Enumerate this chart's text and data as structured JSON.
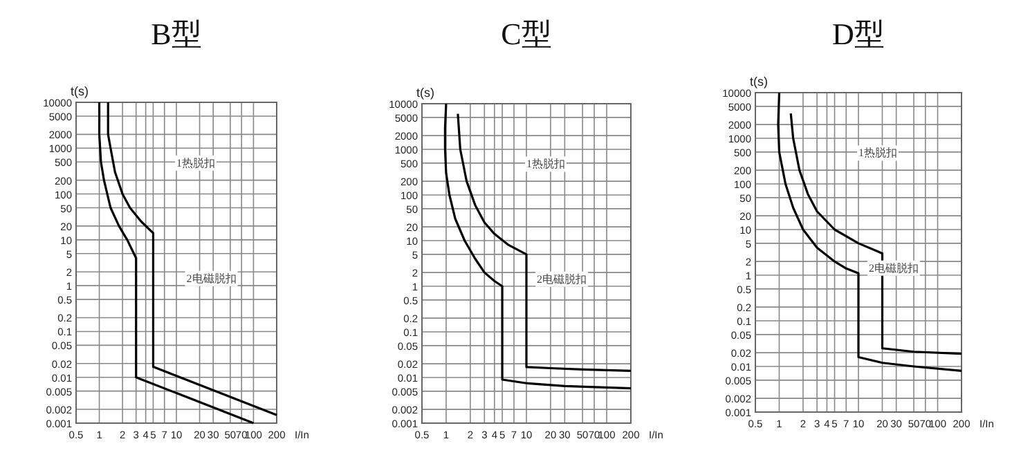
{
  "chart_data": [
    {
      "type": "line",
      "title": "B型",
      "xlabel": "I/In",
      "ylabel": "t(s)",
      "log": "xy",
      "grid": true,
      "marker": "none",
      "line_style": "solid",
      "xlim": [
        0.5,
        200
      ],
      "ylim": [
        0.001,
        10000
      ],
      "xticks": [
        0.5,
        1,
        2,
        3,
        4,
        5,
        7,
        10,
        20,
        30,
        50,
        70,
        100,
        200
      ],
      "yticks": [
        0.001,
        0.002,
        0.005,
        0.01,
        0.02,
        0.05,
        0.1,
        0.2,
        0.5,
        1,
        2,
        5,
        10,
        20,
        50,
        100,
        200,
        500,
        1000,
        2000,
        5000,
        10000
      ],
      "annotations": [
        "1热脱扣",
        "2电磁脱扣"
      ],
      "series": [
        {
          "color": "#000000",
          "x": [
            1,
            1,
            1.05,
            1.15,
            1.4,
            1.8,
            2.3,
            3,
            3,
            100
          ],
          "values": [
            10000,
            2000,
            500,
            200,
            50,
            20,
            10,
            4,
            0.01,
            0.001
          ]
        },
        {
          "color": "#000000",
          "x": [
            1.3,
            1.3,
            1.4,
            1.6,
            2,
            2.5,
            3.5,
            5,
            5,
            200
          ],
          "values": [
            10000,
            2000,
            1000,
            300,
            100,
            50,
            25,
            14,
            0.017,
            0.0015
          ]
        }
      ]
    },
    {
      "type": "line",
      "title": "C型",
      "xlabel": "I/In",
      "ylabel": "t(s)",
      "log": "xy",
      "grid": true,
      "marker": "none",
      "line_style": "solid",
      "xlim": [
        0.5,
        200
      ],
      "ylim": [
        0.001,
        10000
      ],
      "xticks": [
        0.5,
        1,
        2,
        3,
        4,
        5,
        7,
        10,
        20,
        30,
        50,
        70,
        100,
        200
      ],
      "yticks": [
        0.001,
        0.002,
        0.005,
        0.01,
        0.02,
        0.05,
        0.1,
        0.2,
        0.5,
        1,
        2,
        5,
        10,
        20,
        50,
        100,
        200,
        500,
        1000,
        2000,
        5000,
        10000
      ],
      "annotations": [
        "1热脱扣",
        "2电磁脱扣"
      ],
      "series": [
        {
          "color": "#000000",
          "x": [
            1,
            0.97,
            0.97,
            1,
            1.1,
            1.3,
            1.7,
            2.3,
            3,
            4,
            5,
            5,
            10,
            30,
            200
          ],
          "values": [
            10000,
            3000,
            1000,
            300,
            100,
            30,
            10,
            4,
            2,
            1.3,
            1,
            0.009,
            0.0075,
            0.0065,
            0.0058
          ]
        },
        {
          "color": "#000000",
          "x": [
            1.4,
            1.5,
            1.8,
            2.3,
            3,
            4,
            6,
            10,
            10,
            20,
            50,
            200
          ],
          "values": [
            6000,
            1000,
            200,
            60,
            25,
            14,
            8,
            5,
            0.017,
            0.016,
            0.015,
            0.014
          ]
        }
      ]
    },
    {
      "type": "line",
      "title": "D型",
      "xlabel": "I/In",
      "ylabel": "t(s)",
      "log": "xy",
      "grid": true,
      "marker": "none",
      "line_style": "solid",
      "xlim": [
        0.5,
        200
      ],
      "ylim": [
        0.001,
        10000
      ],
      "xticks": [
        0.5,
        1,
        2,
        3,
        4,
        5,
        7,
        10,
        20,
        30,
        50,
        70,
        100,
        200
      ],
      "yticks": [
        0.001,
        0.002,
        0.005,
        0.01,
        0.02,
        0.05,
        0.1,
        0.2,
        0.5,
        1,
        2,
        5,
        10,
        20,
        50,
        100,
        200,
        500,
        1000,
        2000,
        5000,
        10000
      ],
      "annotations": [
        "1热脱扣",
        "2电磁脱扣"
      ],
      "series": [
        {
          "color": "#000000",
          "x": [
            1,
            0.97,
            1,
            1.2,
            1.5,
            2,
            3,
            5,
            7,
            10,
            10,
            20,
            50,
            200
          ],
          "values": [
            10000,
            2000,
            500,
            100,
            30,
            10,
            4,
            2,
            1.4,
            1.1,
            0.016,
            0.012,
            0.01,
            0.008
          ]
        },
        {
          "color": "#000000",
          "x": [
            1.4,
            1.5,
            1.8,
            2.3,
            3,
            5,
            10,
            20,
            20,
            50,
            200
          ],
          "values": [
            3500,
            1000,
            200,
            60,
            25,
            10,
            5,
            3,
            0.025,
            0.021,
            0.019
          ]
        }
      ]
    }
  ]
}
